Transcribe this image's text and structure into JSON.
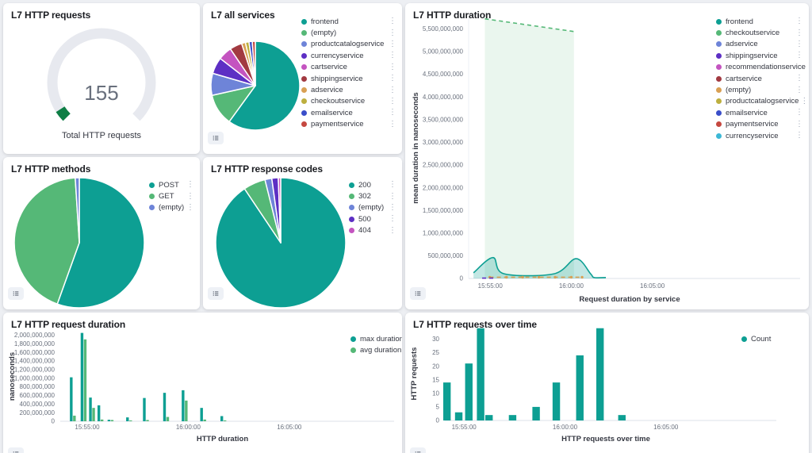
{
  "chart_data": [
    {
      "id": "gauge",
      "type": "gauge",
      "title": "L7 HTTP requests",
      "value": "155",
      "label": "Total HTTP requests",
      "colors": {
        "track": "#e7e9ef",
        "progress": "#0e7e45",
        "value": "#69707d"
      }
    },
    {
      "id": "services",
      "type": "pie",
      "title": "L7 all services",
      "labels": [
        "frontend",
        "(empty)",
        "productcatalogservice",
        "currencyservice",
        "cartservice",
        "shippingservice",
        "adservice",
        "checkoutservice",
        "emailservice",
        "paymentservice"
      ],
      "values": [
        60,
        11.5,
        8,
        6,
        5,
        4.5,
        1.4,
        1.3,
        1.2,
        1.1
      ],
      "colors": [
        "#0d9f93",
        "#55b877",
        "#6e84d8",
        "#5d2fc4",
        "#c454c0",
        "#a23a41",
        "#d9a054",
        "#bdaf3f",
        "#3a4ec9",
        "#c54840"
      ]
    },
    {
      "id": "duration",
      "type": "line",
      "title": "L7 HTTP duration",
      "xlabel": "Request duration by service",
      "ylabel": "mean duration in nanoseconds",
      "xlim": [
        40,
        1232
      ],
      "ylim": [
        0,
        5750000000
      ],
      "yticks": [
        0,
        500000000,
        1000000000,
        1500000000,
        2000000000,
        2500000000,
        3000000000,
        3500000000,
        4000000000,
        4500000000,
        5000000000,
        5500000000
      ],
      "xticks": [
        {
          "v": 120,
          "label": "15:55:00"
        },
        {
          "v": 420,
          "label": "16:00:00"
        },
        {
          "v": 720,
          "label": "16:05:00"
        }
      ],
      "legend": [
        "frontend",
        "checkoutservice",
        "adservice",
        "shippingservice",
        "recommendationservice",
        "cartservice",
        "(empty)",
        "productcatalogservice",
        "emailservice",
        "paymentservice",
        "currencyservice"
      ],
      "legend_colors": [
        "#0d9f93",
        "#55b877",
        "#6e84d8",
        "#5d2fc4",
        "#c454c0",
        "#a23a41",
        "#d9a054",
        "#bdaf3f",
        "#3a4ec9",
        "#c54840",
        "#3cb8d6"
      ],
      "series": [
        {
          "name": "checkoutservice",
          "color": "#55b877",
          "dash": true,
          "fill": true,
          "fill_opacity": 0.12,
          "points": [
            [
              100,
              5720000000
            ],
            [
              430,
              5440000000
            ]
          ]
        },
        {
          "name": "frontend",
          "color": "#0d9f93",
          "dash": false,
          "fill": true,
          "fill_opacity": 0.25,
          "points": [
            [
              58,
              125000000
            ],
            [
              130,
              460000000
            ],
            [
              170,
              105000000
            ],
            [
              355,
              100000000
            ],
            [
              438,
              435000000
            ],
            [
              492,
              100000000
            ],
            [
              505,
              20000000
            ],
            [
              548,
              20000000
            ]
          ]
        },
        {
          "name": "(empty)",
          "color": "#d9a054",
          "dash": true,
          "fill": false,
          "markers": true,
          "points": [
            [
              118,
              28000000
            ],
            [
              180,
              28000000
            ],
            [
              240,
              28000000
            ],
            [
              300,
              28000000
            ],
            [
              360,
              28000000
            ],
            [
              420,
              28000000
            ],
            [
              460,
              28000000
            ]
          ]
        },
        {
          "name": "shippingservice",
          "color": "#5d2fc4",
          "dash": true,
          "fill": false,
          "points": [
            [
              90,
              8000000
            ],
            [
              140,
              8000000
            ]
          ]
        }
      ]
    },
    {
      "id": "methods",
      "type": "pie",
      "title": "L7 HTTP methods",
      "labels": [
        "POST",
        "GET",
        "(empty)"
      ],
      "values": [
        55.5,
        43.5,
        1
      ],
      "colors": [
        "#0d9f93",
        "#55b877",
        "#6e84d8"
      ]
    },
    {
      "id": "codes",
      "type": "pie",
      "title": "L7 HTTP response codes",
      "labels": [
        "200",
        "302",
        "(empty)",
        "500",
        "404"
      ],
      "values": [
        90.6,
        5.5,
        1.7,
        1.6,
        0.6
      ],
      "colors": [
        "#0d9f93",
        "#55b877",
        "#6e84d8",
        "#5d2fc4",
        "#c454c0"
      ]
    },
    {
      "id": "req_duration",
      "type": "bar",
      "title": "L7 HTTP request duration",
      "xlabel": "HTTP duration",
      "ylabel": "nanoseconds",
      "xlim": [
        40,
        1003
      ],
      "ylim": [
        0,
        2080000000
      ],
      "yticks": [
        0,
        200000000,
        400000000,
        600000000,
        800000000,
        1000000000,
        1200000000,
        1400000000,
        1600000000,
        1800000000,
        2000000000
      ],
      "xticks": [
        {
          "v": 120,
          "label": "15:55:00"
        },
        {
          "v": 420,
          "label": "16:00:00"
        },
        {
          "v": 720,
          "label": "16:05:00"
        }
      ],
      "series": [
        {
          "name": "max duration",
          "color": "#0d9f93",
          "points": [
            [
              78,
              1020000000
            ],
            [
              110,
              2050000000
            ],
            [
              135,
              550000000
            ],
            [
              160,
              370000000
            ],
            [
              190,
              35000000
            ],
            [
              245,
              90000000
            ],
            [
              295,
              540000000
            ],
            [
              355,
              660000000
            ],
            [
              410,
              720000000
            ],
            [
              465,
              310000000
            ],
            [
              525,
              120000000
            ]
          ]
        },
        {
          "name": "avg duration",
          "color": "#55b877",
          "points": [
            [
              78,
              130000000
            ],
            [
              110,
              1900000000
            ],
            [
              135,
              310000000
            ],
            [
              160,
              40000000
            ],
            [
              190,
              30000000
            ],
            [
              245,
              20000000
            ],
            [
              295,
              30000000
            ],
            [
              355,
              100000000
            ],
            [
              410,
              480000000
            ],
            [
              465,
              40000000
            ],
            [
              525,
              20000000
            ]
          ]
        }
      ]
    },
    {
      "id": "req_over_time",
      "type": "bar",
      "title": "L7 HTTP requests over time",
      "xlabel": "HTTP requests over time",
      "ylabel": "HTTP requests",
      "xlim": [
        63,
        1020
      ],
      "ylim": [
        0,
        34.5
      ],
      "yticks": [
        0,
        5,
        10,
        15,
        20,
        25,
        30
      ],
      "xticks": [
        {
          "v": 120,
          "label": "15:55:00"
        },
        {
          "v": 420,
          "label": "16:00:00"
        },
        {
          "v": 720,
          "label": "16:05:00"
        }
      ],
      "series": [
        {
          "name": "Count",
          "color": "#0d9f93",
          "points": [
            [
              70,
              14
            ],
            [
              105,
              3
            ],
            [
              135,
              21
            ],
            [
              170,
              34
            ],
            [
              195,
              2
            ],
            [
              265,
              2
            ],
            [
              335,
              5
            ],
            [
              395,
              14
            ],
            [
              465,
              24
            ],
            [
              525,
              34
            ],
            [
              590,
              2
            ]
          ]
        }
      ]
    }
  ]
}
